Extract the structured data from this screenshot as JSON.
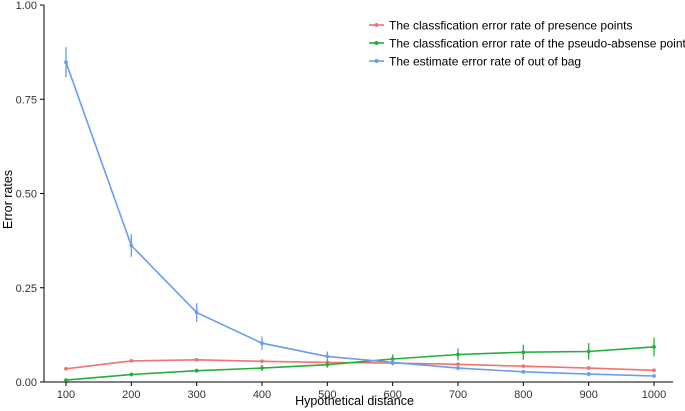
{
  "chart_data": {
    "type": "line",
    "xlabel": "Hypothetical distance",
    "ylabel": "Error rates",
    "x": [
      100,
      200,
      300,
      400,
      500,
      600,
      700,
      800,
      900,
      1000
    ],
    "xlim": [
      100,
      1000
    ],
    "ylim": [
      0,
      1
    ],
    "yticks": [
      0,
      0.25,
      0.5,
      0.75,
      1
    ],
    "ytick_labels": [
      "0.00",
      "0.25",
      "0.50",
      "0.75",
      "1.00"
    ],
    "grid": false,
    "legend_position": "top-right",
    "series": [
      {
        "name": "The classfication error rate of presence points",
        "color": "#f07470",
        "values": [
          0.035,
          0.056,
          0.059,
          0.055,
          0.052,
          0.05,
          0.047,
          0.042,
          0.037,
          0.031
        ],
        "err": [
          0.003,
          0.004,
          0.004,
          0.004,
          0.003,
          0.003,
          0.003,
          0.003,
          0.003,
          0.003
        ]
      },
      {
        "name": "The classfication error rate of the pseudo-absense points",
        "color": "#22b03c",
        "values": [
          0.005,
          0.02,
          0.03,
          0.037,
          0.046,
          0.061,
          0.073,
          0.079,
          0.081,
          0.093
        ],
        "err": [
          0.002,
          0.004,
          0.005,
          0.008,
          0.008,
          0.012,
          0.016,
          0.02,
          0.022,
          0.025
        ]
      },
      {
        "name": "The estimate error rate of out of bag",
        "color": "#6b9cf2",
        "values": [
          0.848,
          0.362,
          0.184,
          0.103,
          0.068,
          0.052,
          0.037,
          0.027,
          0.021,
          0.016
        ],
        "err": [
          0.04,
          0.03,
          0.025,
          0.018,
          0.013,
          0.008,
          0.006,
          0.005,
          0.004,
          0.004
        ]
      }
    ]
  }
}
